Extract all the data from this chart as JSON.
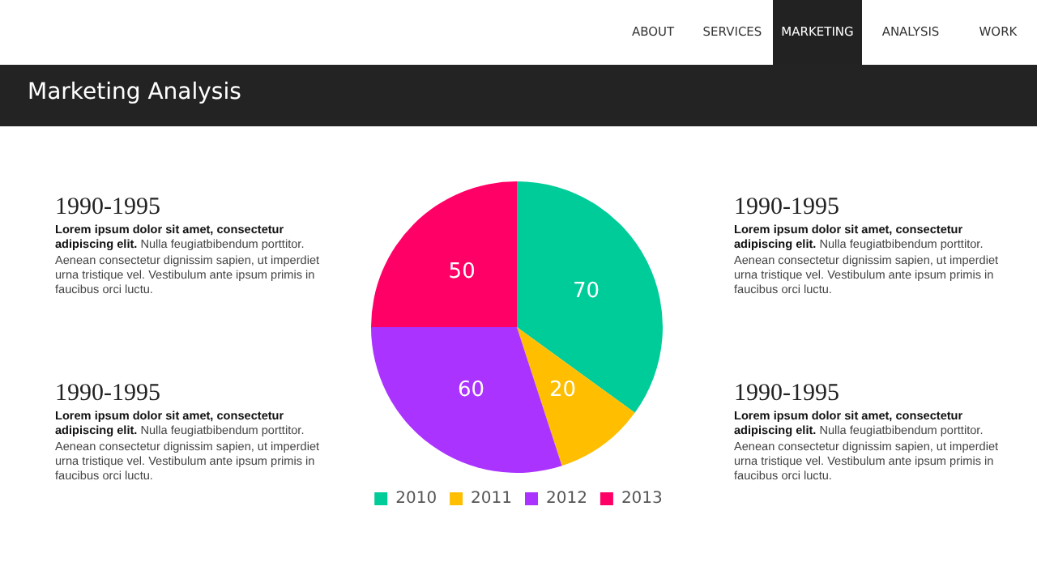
{
  "chart_data": {
    "type": "pie",
    "title": "Marketing Analysis",
    "categories": [
      "2010",
      "2011",
      "2012",
      "2013"
    ],
    "values": [
      70,
      20,
      60,
      50
    ],
    "colors": [
      "#00cc99",
      "#ffbf00",
      "#aa33ff",
      "#ff0066"
    ],
    "data_labels": true,
    "legend": "bottom",
    "annotations": [
      "ABOUT",
      "SERVICES",
      "MARKETING",
      "ANALYSIS",
      "WORK",
      "1990-1995",
      "Lorem ipsum dolor sit amet, consectetur adipiscing elit.",
      "Nulla feugiatbibendum porttitor. Aenean consectetur dignissim sapien, ut imperdiet urna tristique vel. Vestibulum ante ipsum primis in faucibus orci luctu.",
      "1990-1995",
      "Lorem ipsum dolor sit amet, consectetur adipiscing elit.",
      "Nulla feugiatbibendum porttitor. Aenean consectetur dignissim sapien, ut imperdiet urna tristique vel. Vestibulum ante ipsum primis in faucibus orci luctu.",
      "1990-1995",
      "Lorem ipsum dolor sit amet, consectetur adipiscing elit.",
      "Nulla feugiatbibendum porttitor. Aenean consectetur dignissim sapien, ut imperdiet urna tristique vel. Vestibulum ante ipsum primis in faucibus orci luctu.",
      "1990-1995",
      "Lorem ipsum dolor sit amet, consectetur adipiscing elit.",
      "Nulla feugiatbibendum porttitor. Aenean consectetur dignissim sapien, ut imperdiet urna tristique vel. Vestibulum ante ipsum primis in faucibus orci luctu."
    ]
  }
}
